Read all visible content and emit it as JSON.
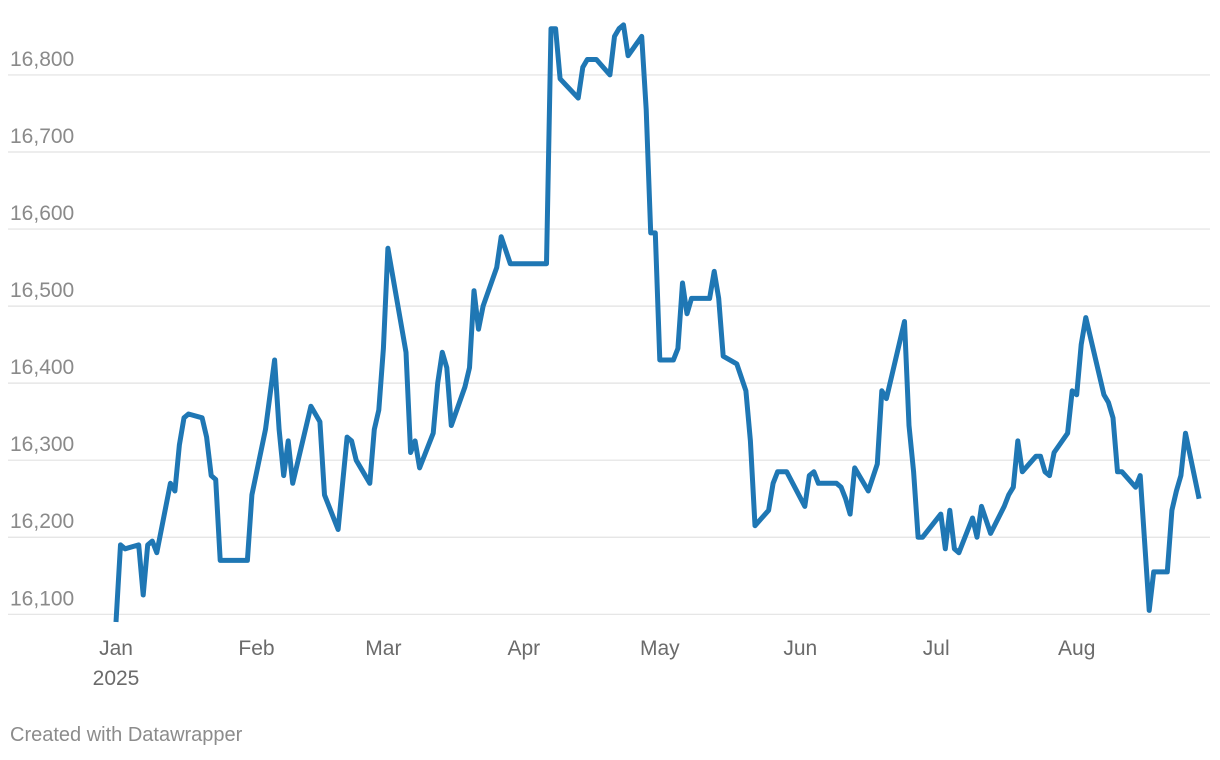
{
  "chart_data": {
    "type": "line",
    "title": "",
    "xlabel": "",
    "ylabel": "",
    "x_range": [
      "2025-01-01",
      "2025-08-26"
    ],
    "ylim": [
      16090,
      16870
    ],
    "y_ticks": [
      16100,
      16200,
      16300,
      16400,
      16500,
      16600,
      16700,
      16800
    ],
    "y_tick_labels": [
      "16,100",
      "16,200",
      "16,300",
      "16,400",
      "16,500",
      "16,600",
      "16,700",
      "16,800"
    ],
    "x_ticks": [
      {
        "date": "2025-01-01",
        "label": "Jan",
        "sublabel": "2025"
      },
      {
        "date": "2025-02-01",
        "label": "Feb"
      },
      {
        "date": "2025-03-01",
        "label": "Mar"
      },
      {
        "date": "2025-04-01",
        "label": "Apr"
      },
      {
        "date": "2025-05-01",
        "label": "May"
      },
      {
        "date": "2025-06-01",
        "label": "Jun"
      },
      {
        "date": "2025-07-01",
        "label": "Jul"
      },
      {
        "date": "2025-08-01",
        "label": "Aug"
      }
    ],
    "grid": true,
    "series": [
      {
        "color": "#1f77b4",
        "points": [
          [
            "2025-01-01",
            16090
          ],
          [
            "2025-01-02",
            16190
          ],
          [
            "2025-01-03",
            16185
          ],
          [
            "2025-01-06",
            16190
          ],
          [
            "2025-01-07",
            16125
          ],
          [
            "2025-01-08",
            16190
          ],
          [
            "2025-01-09",
            16195
          ],
          [
            "2025-01-10",
            16180
          ],
          [
            "2025-01-13",
            16270
          ],
          [
            "2025-01-14",
            16260
          ],
          [
            "2025-01-15",
            16320
          ],
          [
            "2025-01-16",
            16355
          ],
          [
            "2025-01-17",
            16360
          ],
          [
            "2025-01-20",
            16355
          ],
          [
            "2025-01-21",
            16330
          ],
          [
            "2025-01-22",
            16280
          ],
          [
            "2025-01-23",
            16275
          ],
          [
            "2025-01-24",
            16170
          ],
          [
            "2025-01-30",
            16170
          ],
          [
            "2025-01-31",
            16255
          ],
          [
            "2025-02-03",
            16340
          ],
          [
            "2025-02-05",
            16430
          ],
          [
            "2025-02-06",
            16340
          ],
          [
            "2025-02-07",
            16280
          ],
          [
            "2025-02-08",
            16325
          ],
          [
            "2025-02-09",
            16270
          ],
          [
            "2025-02-13",
            16370
          ],
          [
            "2025-02-15",
            16350
          ],
          [
            "2025-02-16",
            16255
          ],
          [
            "2025-02-19",
            16210
          ],
          [
            "2025-02-21",
            16330
          ],
          [
            "2025-02-22",
            16325
          ],
          [
            "2025-02-23",
            16300
          ],
          [
            "2025-02-26",
            16270
          ],
          [
            "2025-02-27",
            16340
          ],
          [
            "2025-02-28",
            16365
          ],
          [
            "2025-03-01",
            16445
          ],
          [
            "2025-03-02",
            16575
          ],
          [
            "2025-03-06",
            16440
          ],
          [
            "2025-03-07",
            16310
          ],
          [
            "2025-03-08",
            16325
          ],
          [
            "2025-03-09",
            16290
          ],
          [
            "2025-03-12",
            16335
          ],
          [
            "2025-03-13",
            16400
          ],
          [
            "2025-03-14",
            16440
          ],
          [
            "2025-03-15",
            16420
          ],
          [
            "2025-03-16",
            16345
          ],
          [
            "2025-03-19",
            16395
          ],
          [
            "2025-03-20",
            16420
          ],
          [
            "2025-03-21",
            16520
          ],
          [
            "2025-03-22",
            16470
          ],
          [
            "2025-03-23",
            16500
          ],
          [
            "2025-03-26",
            16550
          ],
          [
            "2025-03-27",
            16590
          ],
          [
            "2025-03-29",
            16555
          ],
          [
            "2025-04-06",
            16555
          ],
          [
            "2025-04-07",
            16860
          ],
          [
            "2025-04-08",
            16860
          ],
          [
            "2025-04-09",
            16795
          ],
          [
            "2025-04-13",
            16770
          ],
          [
            "2025-04-14",
            16810
          ],
          [
            "2025-04-15",
            16820
          ],
          [
            "2025-04-17",
            16820
          ],
          [
            "2025-04-20",
            16800
          ],
          [
            "2025-04-21",
            16850
          ],
          [
            "2025-04-22",
            16860
          ],
          [
            "2025-04-23",
            16865
          ],
          [
            "2025-04-24",
            16825
          ],
          [
            "2025-04-27",
            16850
          ],
          [
            "2025-04-28",
            16755
          ],
          [
            "2025-04-29",
            16595
          ],
          [
            "2025-04-30",
            16595
          ],
          [
            "2025-05-01",
            16430
          ],
          [
            "2025-05-04",
            16430
          ],
          [
            "2025-05-05",
            16445
          ],
          [
            "2025-05-06",
            16530
          ],
          [
            "2025-05-07",
            16490
          ],
          [
            "2025-05-08",
            16510
          ],
          [
            "2025-05-12",
            16510
          ],
          [
            "2025-05-13",
            16545
          ],
          [
            "2025-05-14",
            16510
          ],
          [
            "2025-05-15",
            16435
          ],
          [
            "2025-05-18",
            16425
          ],
          [
            "2025-05-20",
            16390
          ],
          [
            "2025-05-21",
            16325
          ],
          [
            "2025-05-22",
            16215
          ],
          [
            "2025-05-25",
            16235
          ],
          [
            "2025-05-26",
            16270
          ],
          [
            "2025-05-27",
            16285
          ],
          [
            "2025-05-29",
            16285
          ],
          [
            "2025-06-02",
            16240
          ],
          [
            "2025-06-03",
            16280
          ],
          [
            "2025-06-04",
            16285
          ],
          [
            "2025-06-05",
            16270
          ],
          [
            "2025-06-09",
            16270
          ],
          [
            "2025-06-10",
            16265
          ],
          [
            "2025-06-11",
            16250
          ],
          [
            "2025-06-12",
            16230
          ],
          [
            "2025-06-13",
            16290
          ],
          [
            "2025-06-16",
            16260
          ],
          [
            "2025-06-18",
            16295
          ],
          [
            "2025-06-19",
            16390
          ],
          [
            "2025-06-20",
            16380
          ],
          [
            "2025-06-24",
            16480
          ],
          [
            "2025-06-25",
            16345
          ],
          [
            "2025-06-26",
            16285
          ],
          [
            "2025-06-27",
            16200
          ],
          [
            "2025-06-28",
            16200
          ],
          [
            "2025-07-02",
            16230
          ],
          [
            "2025-07-03",
            16185
          ],
          [
            "2025-07-04",
            16235
          ],
          [
            "2025-07-05",
            16185
          ],
          [
            "2025-07-06",
            16180
          ],
          [
            "2025-07-09",
            16225
          ],
          [
            "2025-07-10",
            16200
          ],
          [
            "2025-07-11",
            16240
          ],
          [
            "2025-07-13",
            16205
          ],
          [
            "2025-07-16",
            16240
          ],
          [
            "2025-07-17",
            16255
          ],
          [
            "2025-07-18",
            16265
          ],
          [
            "2025-07-19",
            16325
          ],
          [
            "2025-07-20",
            16285
          ],
          [
            "2025-07-23",
            16305
          ],
          [
            "2025-07-24",
            16305
          ],
          [
            "2025-07-25",
            16285
          ],
          [
            "2025-07-26",
            16280
          ],
          [
            "2025-07-27",
            16310
          ],
          [
            "2025-07-30",
            16335
          ],
          [
            "2025-07-31",
            16390
          ],
          [
            "2025-08-01",
            16385
          ],
          [
            "2025-08-02",
            16450
          ],
          [
            "2025-08-03",
            16485
          ],
          [
            "2025-08-07",
            16385
          ],
          [
            "2025-08-08",
            16375
          ],
          [
            "2025-08-09",
            16355
          ],
          [
            "2025-08-10",
            16285
          ],
          [
            "2025-08-11",
            16285
          ],
          [
            "2025-08-14",
            16265
          ],
          [
            "2025-08-15",
            16280
          ],
          [
            "2025-08-17",
            16105
          ],
          [
            "2025-08-18",
            16155
          ],
          [
            "2025-08-21",
            16155
          ],
          [
            "2025-08-22",
            16235
          ],
          [
            "2025-08-23",
            16260
          ],
          [
            "2025-08-24",
            16280
          ],
          [
            "2025-08-25",
            16335
          ],
          [
            "2025-08-28",
            16250
          ]
        ]
      }
    ]
  },
  "footer": {
    "credit": "Created with Datawrapper"
  }
}
